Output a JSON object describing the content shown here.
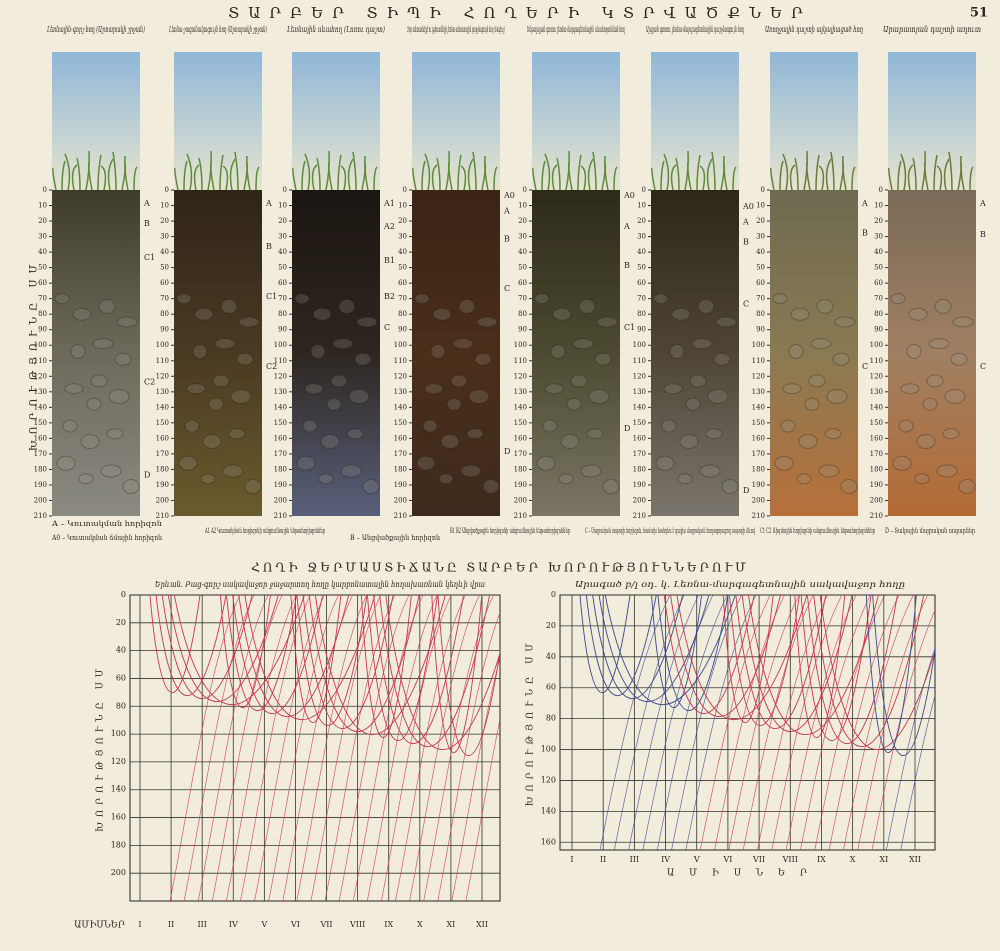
{
  "page_title": "ՏԱՐԲԵՐ ՏԻՊԻ ՀՈՂԵՐԻ ԿՏՐՎԱԾՔՆԵՐ",
  "page_number": "51",
  "depth_axis_label": "ԽՈՐՈՒԹՅՈՒՆԸ ՍՄ",
  "depth_ticks": [
    0,
    10,
    20,
    30,
    40,
    50,
    60,
    70,
    80,
    90,
    100,
    110,
    120,
    130,
    140,
    150,
    160,
    170,
    180,
    190,
    200,
    210
  ],
  "profiles": [
    {
      "caption": "Լեռնային-գորշ հող (Աշտարակի շրջան)",
      "horizons": [
        "A",
        "B",
        "C1",
        "C2",
        "D"
      ]
    },
    {
      "caption": "Լեռնա-շագանակագույն հող (Աշտարակի շրջան)",
      "horizons": [
        "A",
        "B",
        "C1",
        "C2"
      ]
    },
    {
      "caption": "Լեռնային սևահող (Լոռու դաշտ)",
      "horizons": [
        "A1",
        "A2",
        "B1",
        "B2",
        "C"
      ]
    },
    {
      "caption": "Չոր անտառների ու թփուտների լեռնա-անտառային դարչնագույն հող (Տավուշ)",
      "horizons": [
        "A0",
        "A",
        "B",
        "C",
        "D"
      ]
    },
    {
      "caption": "Ենթալպյան գոտու լեռնա-մարգագետնային սևահողանման հող",
      "horizons": [
        "A0",
        "A",
        "B",
        "C1",
        "D"
      ]
    },
    {
      "caption": "Ալպյան գոտու լեռնա-մարգագետնային դարչնագույն հող",
      "horizons": [
        "A0",
        "A",
        "B",
        "C",
        "D"
      ]
    },
    {
      "caption": "Առողջային դաշտի ալկալիացած հող",
      "horizons": [
        "A",
        "B",
        "C"
      ]
    },
    {
      "caption": "Արարատյան դաշտի աղուտ",
      "horizons": [
        "A",
        "B",
        "C"
      ]
    }
  ],
  "legend": [
    "A – Կուտակման հորիզոն",
    "A0 – Կուտակման ճմային հորիզոն",
    "A1 A2 Կուտակման հորիզոնի անցումնային ենթահորիզոններ",
    "B – Անցվածքային հորիզոն",
    "B1 B2 Անցվածքային հորիզոնի անցումնային ենթահորիզոններ",
    "C – Մայրական ապարի հորիզոն, հաճախ հանդես է գալիս մայրական հողագոյացող ապարի ձևով",
    "C1 C2 Ռիզմային հորիզոնի անցումնային ենթահորիզոններ",
    "D – Տակային մայրական ապարներ"
  ],
  "temperature_title": "ՀՈՂԻ ՋԵՐՄԱՍՏԻՃԱՆԸ ՏԱՐԲԵՐ ԽՈՐՈՒԹՅՈՒՆՆԵՐՈՒՄ",
  "charts": [
    {
      "title": "Երևան. Բաց-գորշ սակավաջոր ջաջարտող հողը կարբոնատային հողախառնան կեղևի վրա",
      "y_axis_label": "ԽՈՐՈՒԹՅՈՒՆԸ ՍՄ",
      "x_axis_label": "ԱՄԻՍՆԵՐ",
      "ylim": [
        0,
        220
      ],
      "yticks": [
        0,
        20,
        40,
        60,
        80,
        100,
        120,
        140,
        160,
        180,
        200
      ],
      "months": [
        "I",
        "II",
        "III",
        "IV",
        "V",
        "VI",
        "VII",
        "VIII",
        "IX",
        "X",
        "XI",
        "XII"
      ]
    },
    {
      "title": "Արագած բ/լ օդ. կ. Լեռնա-մարգագետնային սակավաջոր հողը",
      "y_axis_label": "ԽՈՐՈՒԹՅՈՒՆԸ ՍՄ",
      "x_axis_label": "Ա Մ Ի Ս Ն Ե Ր",
      "ylim": [
        0,
        165
      ],
      "yticks": [
        0,
        20,
        40,
        60,
        80,
        100,
        120,
        140,
        160
      ],
      "months": [
        "I",
        "II",
        "III",
        "IV",
        "V",
        "VI",
        "VII",
        "VIII",
        "IX",
        "X",
        "XI",
        "XII"
      ]
    }
  ]
}
